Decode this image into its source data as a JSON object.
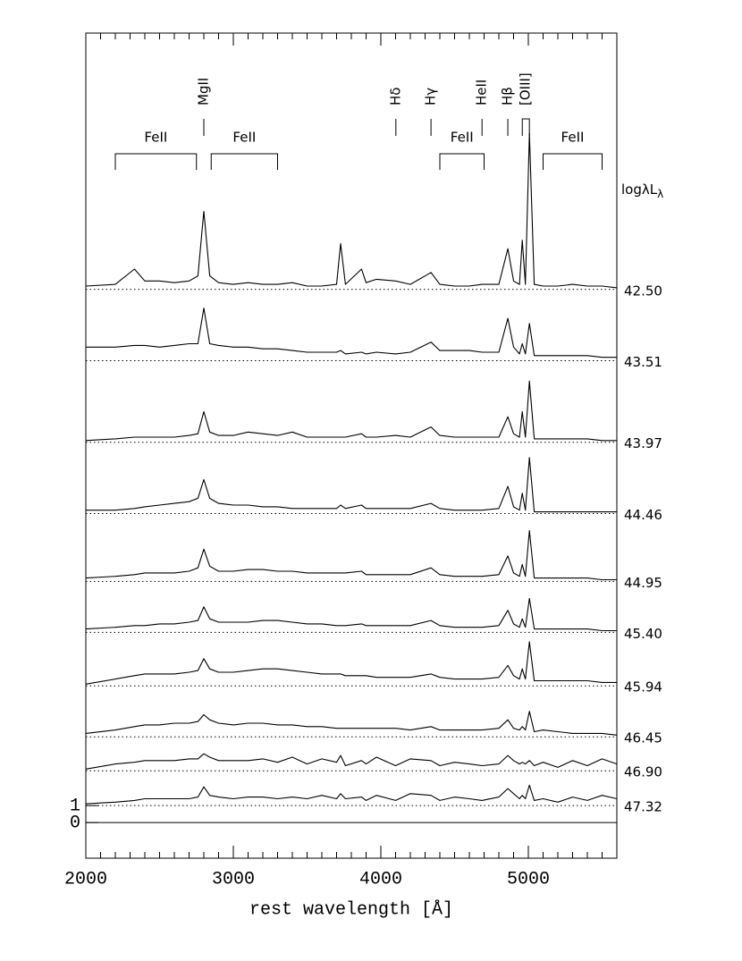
{
  "chart_data": {
    "type": "line",
    "x_label": "rest wavelength [Å]",
    "lum_label": {
      "main": "logλL",
      "sub": "λ"
    },
    "xlim": [
      2000,
      5600
    ],
    "xticks": [
      2000,
      3000,
      4000,
      5000
    ],
    "xminorticks": [
      2100,
      2200,
      2300,
      2400,
      2500,
      2600,
      2700,
      2800,
      2900,
      3100,
      3200,
      3300,
      3400,
      3500,
      3600,
      3700,
      3800,
      3900,
      4100,
      4200,
      4300,
      4400,
      4500,
      4600,
      4700,
      4800,
      4900,
      5100,
      5200,
      5300,
      5400,
      5500
    ],
    "ylim": [
      -2.1,
      46.5
    ],
    "yticks": [
      0,
      1
    ],
    "zero_line": 0,
    "line_labels": [
      {
        "text": "MgII",
        "x": 2800
      },
      {
        "text": "Hδ",
        "x": 4102
      },
      {
        "text": "Hγ",
        "x": 4340
      },
      {
        "text": "HeII",
        "x": 4686
      },
      {
        "text": "Hβ",
        "x": 4861
      },
      {
        "text": "[OIII]",
        "range": [
          4959,
          5007
        ]
      }
    ],
    "bands": [
      {
        "text": "FeII",
        "range": [
          2200,
          2750
        ]
      },
      {
        "text": "FeII",
        "range": [
          2850,
          3300
        ]
      },
      {
        "text": "FeII",
        "range": [
          4400,
          4700
        ]
      },
      {
        "text": "FeII",
        "range": [
          5100,
          5500
        ]
      }
    ],
    "x": [
      2000,
      2200,
      2330,
      2400,
      2500,
      2600,
      2700,
      2760,
      2800,
      2840,
      2900,
      3000,
      3100,
      3200,
      3300,
      3400,
      3500,
      3600,
      3700,
      3727,
      3760,
      3869,
      3900,
      3970,
      4100,
      4200,
      4340,
      4400,
      4500,
      4600,
      4686,
      4800,
      4861,
      4900,
      4940,
      4959,
      4980,
      5007,
      5040,
      5100,
      5200,
      5300,
      5400,
      5500,
      5600
    ],
    "series": [
      {
        "name": "42.50",
        "color": "#000",
        "offset": 31.4,
        "values": [
          0.2,
          0.3,
          1.2,
          0.5,
          0.5,
          0.4,
          0.5,
          0.8,
          4.6,
          0.8,
          0.4,
          0.3,
          0.4,
          0.3,
          0.3,
          0.4,
          0.2,
          0.2,
          0.3,
          2.7,
          0.3,
          1.2,
          0.4,
          0.6,
          0.5,
          0.3,
          1.0,
          0.3,
          0.2,
          0.2,
          0.3,
          0.3,
          2.4,
          0.5,
          0.3,
          2.9,
          0.3,
          9.2,
          0.3,
          0.2,
          0.2,
          0.3,
          0.2,
          0.2,
          0.1
        ]
      },
      {
        "name": "43.51",
        "color": "#000",
        "offset": 27.2,
        "values": [
          0.8,
          0.8,
          0.9,
          0.9,
          0.8,
          0.9,
          1.0,
          1.0,
          3.1,
          1.0,
          0.9,
          0.8,
          0.8,
          0.7,
          0.7,
          0.6,
          0.5,
          0.5,
          0.5,
          0.6,
          0.4,
          0.5,
          0.4,
          0.5,
          0.4,
          0.5,
          1.1,
          0.6,
          0.6,
          0.6,
          0.5,
          0.5,
          2.5,
          0.8,
          0.4,
          1.0,
          0.4,
          2.2,
          0.3,
          0.3,
          0.3,
          0.3,
          0.3,
          0.2,
          0.2
        ]
      },
      {
        "name": "43.97",
        "color": "#000",
        "offset": 22.4,
        "values": [
          0.1,
          0.2,
          0.3,
          0.3,
          0.3,
          0.3,
          0.4,
          0.5,
          1.8,
          0.6,
          0.4,
          0.4,
          0.6,
          0.5,
          0.4,
          0.6,
          0.3,
          0.3,
          0.3,
          0.3,
          0.3,
          0.5,
          0.3,
          0.3,
          0.4,
          0.3,
          0.9,
          0.4,
          0.3,
          0.3,
          0.3,
          0.3,
          1.5,
          0.5,
          0.3,
          1.8,
          0.3,
          3.6,
          0.2,
          0.2,
          0.2,
          0.2,
          0.2,
          0.1,
          0.1
        ]
      },
      {
        "name": "44.46",
        "color": "#000",
        "offset": 18.2,
        "values": [
          0.2,
          0.2,
          0.3,
          0.4,
          0.5,
          0.6,
          0.7,
          0.9,
          2.0,
          0.9,
          0.6,
          0.5,
          0.5,
          0.4,
          0.4,
          0.3,
          0.3,
          0.3,
          0.3,
          0.5,
          0.3,
          0.5,
          0.3,
          0.3,
          0.3,
          0.3,
          0.6,
          0.3,
          0.2,
          0.2,
          0.2,
          0.3,
          1.6,
          0.4,
          0.2,
          1.2,
          0.2,
          3.3,
          0.1,
          0.1,
          0.1,
          0.1,
          0.1,
          0.1,
          0.1
        ]
      },
      {
        "name": "44.95",
        "color": "#000",
        "offset": 14.2,
        "values": [
          0.2,
          0.3,
          0.4,
          0.5,
          0.5,
          0.5,
          0.6,
          0.8,
          1.9,
          0.9,
          0.6,
          0.6,
          0.7,
          0.7,
          0.6,
          0.6,
          0.5,
          0.5,
          0.5,
          0.5,
          0.5,
          0.6,
          0.4,
          0.4,
          0.4,
          0.4,
          0.8,
          0.4,
          0.3,
          0.3,
          0.3,
          0.4,
          1.5,
          0.5,
          0.3,
          1.0,
          0.3,
          3.0,
          0.2,
          0.2,
          0.2,
          0.2,
          0.2,
          0.1,
          0.1
        ]
      },
      {
        "name": "45.40",
        "color": "#000",
        "offset": 11.2,
        "values": [
          0.2,
          0.3,
          0.4,
          0.4,
          0.5,
          0.5,
          0.6,
          0.7,
          1.5,
          0.8,
          0.6,
          0.6,
          0.6,
          0.7,
          0.7,
          0.6,
          0.5,
          0.5,
          0.4,
          0.4,
          0.4,
          0.5,
          0.4,
          0.4,
          0.4,
          0.4,
          0.7,
          0.4,
          0.3,
          0.3,
          0.3,
          0.4,
          1.3,
          0.5,
          0.3,
          0.8,
          0.3,
          2.0,
          0.2,
          0.2,
          0.2,
          0.2,
          0.2,
          0.1,
          0.1
        ]
      },
      {
        "name": "45.94",
        "color": "#000",
        "offset": 8.05,
        "values": [
          0.1,
          0.4,
          0.6,
          0.7,
          0.7,
          0.7,
          0.8,
          0.9,
          1.6,
          1.0,
          0.8,
          0.8,
          0.9,
          1.0,
          1.0,
          0.9,
          0.8,
          0.7,
          0.7,
          0.7,
          0.6,
          0.6,
          0.6,
          0.5,
          0.5,
          0.5,
          0.7,
          0.5,
          0.4,
          0.4,
          0.4,
          0.5,
          1.2,
          0.6,
          0.4,
          1.0,
          0.4,
          2.6,
          0.3,
          0.3,
          0.3,
          0.3,
          0.3,
          0.2,
          0.2
        ]
      },
      {
        "name": "46.45",
        "color": "#000",
        "offset": 5.05,
        "values": [
          0.2,
          0.4,
          0.6,
          0.7,
          0.7,
          0.8,
          0.8,
          0.9,
          1.3,
          1.0,
          0.8,
          0.7,
          0.8,
          0.8,
          0.7,
          0.7,
          0.6,
          0.6,
          0.5,
          0.5,
          0.5,
          0.5,
          0.5,
          0.5,
          0.5,
          0.4,
          0.6,
          0.4,
          0.4,
          0.4,
          0.4,
          0.5,
          1.0,
          0.5,
          0.4,
          0.6,
          0.4,
          1.5,
          0.3,
          0.4,
          0.3,
          0.2,
          0.2,
          0.2,
          0.1
        ]
      },
      {
        "name": "46.90",
        "color": "#000",
        "offset": 3.05,
        "values": [
          0.1,
          0.4,
          0.5,
          0.6,
          0.6,
          0.6,
          0.7,
          0.7,
          1.0,
          0.8,
          0.6,
          0.6,
          0.6,
          0.7,
          0.5,
          0.8,
          0.4,
          0.7,
          0.5,
          0.9,
          0.3,
          0.6,
          0.4,
          0.8,
          0.3,
          0.7,
          0.6,
          0.3,
          0.5,
          0.4,
          0.3,
          0.4,
          0.9,
          0.6,
          0.4,
          0.5,
          0.4,
          0.6,
          0.3,
          0.5,
          0.2,
          0.6,
          0.3,
          0.7,
          0.4
        ]
      },
      {
        "name": "47.32",
        "color": "#000",
        "offset": 1.0,
        "values": [
          0.1,
          0.2,
          0.3,
          0.4,
          0.4,
          0.4,
          0.4,
          0.5,
          1.1,
          0.6,
          0.5,
          0.4,
          0.5,
          0.5,
          0.4,
          0.5,
          0.4,
          0.6,
          0.4,
          0.7,
          0.4,
          0.5,
          0.3,
          0.6,
          0.3,
          0.7,
          0.6,
          0.3,
          0.5,
          0.4,
          0.3,
          0.5,
          1.0,
          0.7,
          0.4,
          0.6,
          0.4,
          1.2,
          0.3,
          0.4,
          0.2,
          0.5,
          0.3,
          0.6,
          0.4
        ]
      }
    ]
  }
}
